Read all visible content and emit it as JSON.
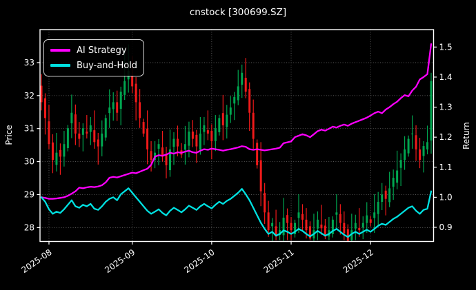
{
  "title": "cnstock [300699.SZ]",
  "colors": {
    "background": "#000000",
    "text": "#ffffff",
    "spine": "#ffffff",
    "grid": "#5e5e5e",
    "ai_strategy": "#ff00ff",
    "buy_and_hold": "#00e1e1",
    "candle_up": "#00a650",
    "candle_down": "#f01a1a"
  },
  "legend": {
    "items": [
      {
        "label": "AI Strategy",
        "color": "#ff00ff"
      },
      {
        "label": "Buy-and-Hold",
        "color": "#00e1e1"
      }
    ]
  },
  "chart_data": {
    "type": "candlestick+line",
    "title": "cnstock [300699.SZ]",
    "ylabel_left": "Price",
    "ylabel_right": "Return",
    "grid": true,
    "legend_position": "upper-left",
    "x_tick_labels": [
      "2025-08",
      "2025-09",
      "2025-10",
      "2025-11",
      "2025-12"
    ],
    "x_tick_day_index": [
      2,
      24,
      45,
      66,
      87
    ],
    "yticks_left": [
      28,
      29,
      30,
      31,
      32,
      33
    ],
    "yticks_right": [
      0.9,
      1.0,
      1.1,
      1.2,
      1.3,
      1.4,
      1.5
    ],
    "ylim_left": [
      27.58,
      34.0
    ],
    "ylim_right": [
      0.853,
      1.558
    ],
    "series": [
      {
        "name": "AI Strategy",
        "axis": "right",
        "color": "#ff00ff",
        "values": [
          1.0,
          0.998,
          0.995,
          0.995,
          0.996,
          0.998,
          1.0,
          1.005,
          1.012,
          1.02,
          1.032,
          1.03,
          1.033,
          1.035,
          1.034,
          1.036,
          1.04,
          1.05,
          1.065,
          1.068,
          1.066,
          1.07,
          1.074,
          1.078,
          1.082,
          1.08,
          1.085,
          1.09,
          1.095,
          1.108,
          1.135,
          1.14,
          1.138,
          1.142,
          1.148,
          1.145,
          1.15,
          1.148,
          1.152,
          1.155,
          1.15,
          1.148,
          1.155,
          1.16,
          1.158,
          1.162,
          1.16,
          1.158,
          1.155,
          1.158,
          1.16,
          1.163,
          1.166,
          1.17,
          1.168,
          1.16,
          1.158,
          1.16,
          1.158,
          1.156,
          1.158,
          1.16,
          1.162,
          1.165,
          1.18,
          1.183,
          1.186,
          1.2,
          1.205,
          1.21,
          1.206,
          1.2,
          1.21,
          1.22,
          1.225,
          1.222,
          1.228,
          1.235,
          1.232,
          1.238,
          1.242,
          1.238,
          1.245,
          1.25,
          1.255,
          1.26,
          1.265,
          1.272,
          1.28,
          1.285,
          1.28,
          1.292,
          1.3,
          1.31,
          1.318,
          1.33,
          1.34,
          1.336,
          1.355,
          1.368,
          1.392,
          1.4,
          1.41,
          1.51
        ]
      },
      {
        "name": "Buy-and-Hold",
        "axis": "right",
        "color": "#00e1e1",
        "values": [
          1.0,
          0.985,
          0.96,
          0.945,
          0.952,
          0.948,
          0.96,
          0.975,
          0.99,
          0.97,
          0.965,
          0.975,
          0.97,
          0.978,
          0.962,
          0.958,
          0.97,
          0.985,
          0.995,
          1.0,
          0.99,
          1.01,
          1.02,
          1.03,
          1.015,
          1.0,
          0.985,
          0.97,
          0.955,
          0.945,
          0.952,
          0.96,
          0.948,
          0.94,
          0.955,
          0.965,
          0.958,
          0.95,
          0.96,
          0.972,
          0.965,
          0.958,
          0.97,
          0.978,
          0.97,
          0.963,
          0.975,
          0.985,
          0.978,
          0.988,
          0.995,
          1.005,
          1.015,
          1.028,
          1.01,
          0.99,
          0.965,
          0.94,
          0.915,
          0.895,
          0.878,
          0.885,
          0.872,
          0.878,
          0.89,
          0.885,
          0.878,
          0.885,
          0.895,
          0.888,
          0.878,
          0.87,
          0.878,
          0.888,
          0.88,
          0.872,
          0.878,
          0.888,
          0.895,
          0.885,
          0.875,
          0.868,
          0.878,
          0.885,
          0.878,
          0.885,
          0.892,
          0.885,
          0.895,
          0.905,
          0.912,
          0.908,
          0.918,
          0.928,
          0.935,
          0.945,
          0.955,
          0.965,
          0.97,
          0.955,
          0.945,
          0.958,
          0.962,
          1.02
        ]
      }
    ],
    "candles": {
      "axis": "left",
      "up_color": "#00a650",
      "down_color": "#f01a1a",
      "ohlc": [
        [
          32.3,
          32.65,
          31.55,
          31.8
        ],
        [
          31.92,
          32.07,
          30.82,
          31.32
        ],
        [
          31.22,
          31.72,
          30.38,
          30.53
        ],
        [
          30.58,
          30.83,
          29.65,
          30.05
        ],
        [
          29.9,
          30.87,
          29.7,
          30.27
        ],
        [
          30.35,
          30.55,
          29.6,
          30.15
        ],
        [
          30.15,
          30.93,
          29.85,
          30.53
        ],
        [
          30.41,
          31.11,
          30.31,
          31.01
        ],
        [
          31.16,
          32.03,
          30.71,
          31.48
        ],
        [
          31.43,
          31.73,
          30.5,
          30.85
        ],
        [
          30.85,
          31.2,
          30.44,
          30.69
        ],
        [
          30.81,
          31.16,
          30.31,
          31.01
        ],
        [
          30.91,
          31.41,
          30.7,
          30.85
        ],
        [
          30.9,
          31.35,
          30.5,
          31.1
        ],
        [
          30.95,
          31.55,
          30.39,
          30.59
        ],
        [
          30.67,
          30.87,
          29.91,
          30.46
        ],
        [
          30.46,
          31.25,
          30.16,
          30.85
        ],
        [
          30.73,
          31.42,
          30.63,
          31.32
        ],
        [
          31.47,
          32.19,
          31.02,
          31.64
        ],
        [
          31.59,
          32.1,
          31.24,
          31.8
        ],
        [
          31.8,
          32.15,
          31.23,
          31.48
        ],
        [
          31.6,
          32.27,
          31.1,
          32.12
        ],
        [
          32.02,
          33.4,
          31.87,
          32.44
        ],
        [
          32.49,
          33.55,
          32.09,
          32.75
        ],
        [
          32.6,
          33.2,
          32.08,
          32.28
        ],
        [
          32.36,
          32.56,
          31.25,
          31.8
        ],
        [
          31.8,
          32.2,
          31.02,
          31.32
        ],
        [
          31.2,
          31.3,
          30.75,
          30.85
        ],
        [
          31.0,
          31.55,
          29.92,
          30.37
        ],
        [
          30.32,
          30.62,
          29.7,
          30.05
        ],
        [
          30.05,
          30.62,
          29.8,
          30.27
        ],
        [
          30.39,
          30.68,
          29.89,
          30.53
        ],
        [
          30.43,
          30.93,
          30.0,
          30.15
        ],
        [
          30.2,
          30.45,
          29.49,
          29.89
        ],
        [
          29.74,
          30.97,
          29.54,
          30.37
        ],
        [
          30.45,
          30.89,
          29.9,
          30.69
        ],
        [
          30.69,
          31.09,
          30.16,
          30.46
        ],
        [
          30.34,
          30.56,
          30.11,
          30.21
        ],
        [
          30.36,
          31.08,
          29.91,
          30.53
        ],
        [
          30.48,
          31.21,
          30.13,
          30.91
        ],
        [
          30.91,
          31.26,
          30.44,
          30.69
        ],
        [
          30.81,
          30.96,
          29.96,
          30.46
        ],
        [
          30.36,
          31.35,
          30.21,
          30.85
        ],
        [
          30.9,
          31.35,
          30.5,
          31.1
        ],
        [
          30.95,
          31.55,
          30.65,
          30.85
        ],
        [
          30.93,
          31.13,
          30.07,
          30.62
        ],
        [
          30.62,
          31.41,
          30.32,
          31.01
        ],
        [
          30.89,
          31.42,
          30.79,
          31.32
        ],
        [
          31.47,
          32.02,
          30.65,
          31.1
        ],
        [
          31.05,
          31.72,
          30.7,
          31.42
        ],
        [
          31.42,
          31.99,
          31.17,
          31.64
        ],
        [
          31.76,
          32.11,
          31.26,
          31.96
        ],
        [
          31.86,
          32.78,
          31.71,
          32.28
        ],
        [
          32.33,
          32.94,
          31.93,
          32.69
        ],
        [
          32.54,
          33.14,
          31.92,
          32.12
        ],
        [
          32.2,
          32.4,
          30.93,
          31.48
        ],
        [
          31.48,
          31.88,
          30.39,
          30.69
        ],
        [
          30.57,
          30.67,
          29.79,
          29.89
        ],
        [
          30.04,
          30.59,
          28.65,
          29.1
        ],
        [
          29.05,
          29.35,
          28.11,
          28.46
        ],
        [
          28.46,
          28.81,
          27.72,
          27.92
        ],
        [
          28.04,
          28.29,
          27.6,
          28.14
        ],
        [
          28.04,
          28.54,
          27.62,
          27.73
        ],
        [
          27.78,
          28.17,
          27.62,
          27.92
        ],
        [
          27.77,
          28.9,
          27.6,
          28.3
        ],
        [
          28.38,
          28.58,
          27.62,
          28.14
        ],
        [
          28.14,
          28.32,
          27.62,
          27.92
        ],
        [
          27.8,
          28.24,
          27.7,
          28.14
        ],
        [
          28.29,
          29.01,
          27.84,
          28.46
        ],
        [
          28.41,
          28.71,
          27.89,
          28.24
        ],
        [
          28.24,
          28.59,
          27.67,
          27.92
        ],
        [
          28.04,
          28.19,
          27.62,
          27.67
        ],
        [
          27.67,
          28.42,
          27.6,
          27.92
        ],
        [
          27.97,
          28.49,
          27.62,
          28.24
        ],
        [
          28.09,
          28.69,
          27.78,
          27.98
        ],
        [
          28.06,
          28.26,
          27.65,
          27.73
        ],
        [
          27.73,
          28.32,
          27.62,
          27.92
        ],
        [
          27.8,
          28.34,
          27.7,
          28.24
        ],
        [
          28.39,
          29.01,
          27.94,
          28.46
        ],
        [
          28.41,
          28.71,
          27.79,
          28.14
        ],
        [
          28.14,
          28.49,
          27.62,
          27.83
        ],
        [
          27.95,
          28.1,
          27.58,
          27.6
        ],
        [
          27.62,
          28.42,
          27.58,
          27.92
        ],
        [
          27.97,
          28.39,
          27.62,
          28.14
        ],
        [
          27.99,
          28.59,
          27.72,
          27.92
        ],
        [
          28.0,
          28.34,
          27.65,
          28.14
        ],
        [
          28.14,
          28.77,
          27.84,
          28.37
        ],
        [
          28.25,
          28.35,
          28.04,
          28.14
        ],
        [
          28.29,
          29.01,
          27.84,
          28.46
        ],
        [
          28.41,
          29.08,
          28.06,
          28.78
        ],
        [
          28.78,
          29.35,
          28.53,
          29.0
        ],
        [
          29.12,
          29.27,
          28.37,
          28.87
        ],
        [
          28.77,
          29.69,
          28.62,
          29.19
        ],
        [
          29.24,
          29.76,
          28.84,
          29.51
        ],
        [
          29.36,
          30.33,
          29.16,
          29.73
        ],
        [
          29.81,
          30.25,
          29.26,
          30.05
        ],
        [
          30.05,
          30.77,
          29.75,
          30.37
        ],
        [
          30.25,
          30.79,
          30.15,
          30.69
        ],
        [
          30.84,
          31.4,
          30.39,
          30.85
        ],
        [
          30.8,
          31.1,
          30.02,
          30.37
        ],
        [
          30.37,
          30.72,
          29.8,
          30.05
        ],
        [
          30.17,
          30.62,
          29.67,
          30.47
        ],
        [
          30.37,
          31.09,
          30.22,
          30.59
        ],
        [
          30.64,
          32.69,
          30.24,
          32.44
        ]
      ]
    }
  }
}
